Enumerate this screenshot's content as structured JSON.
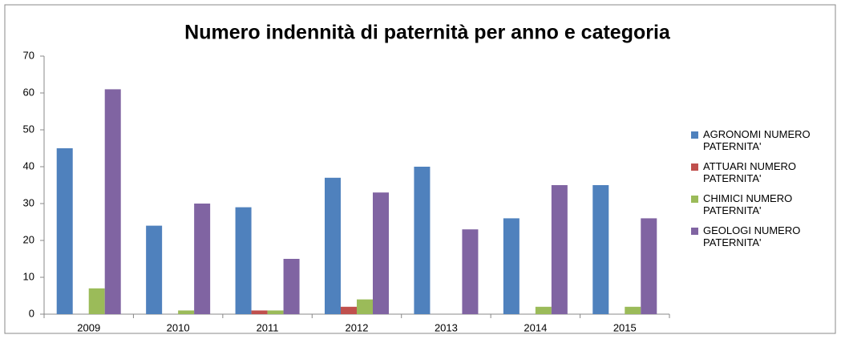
{
  "chart_data": {
    "type": "bar",
    "title": "Numero indennità di paternità per anno e categoria",
    "categories": [
      "2009",
      "2010",
      "2011",
      "2012",
      "2013",
      "2014",
      "2015"
    ],
    "series": [
      {
        "name": "AGRONOMI NUMERO PATERNITA'",
        "color": "#4f81bd",
        "values": [
          45,
          24,
          29,
          37,
          40,
          26,
          35
        ]
      },
      {
        "name": "ATTUARI NUMERO PATERNITA'",
        "color": "#c0504d",
        "values": [
          0,
          0,
          1,
          2,
          0,
          0,
          0
        ]
      },
      {
        "name": "CHIMICI NUMERO PATERNITA'",
        "color": "#9bbb59",
        "values": [
          7,
          1,
          1,
          4,
          0,
          2,
          2
        ]
      },
      {
        "name": "GEOLOGI NUMERO PATERNITA'",
        "color": "#8064a2",
        "values": [
          61,
          30,
          15,
          33,
          23,
          35,
          26
        ]
      }
    ],
    "ylim": [
      0,
      70
    ],
    "yticks": [
      0,
      10,
      20,
      30,
      40,
      50,
      60,
      70
    ],
    "grid": false,
    "legend": "right"
  }
}
